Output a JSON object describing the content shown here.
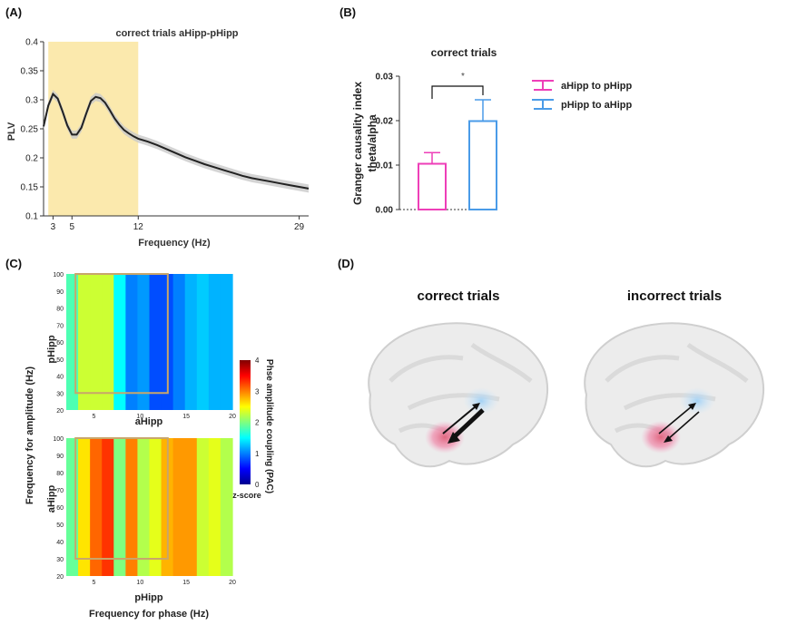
{
  "panels": {
    "A": {
      "label": "(A)",
      "chart_data": {
        "type": "line",
        "title": "correct trials aHipp-pHipp",
        "xlabel": "Frequency (Hz)",
        "ylabel": "PLV",
        "xlim": [
          2,
          30
        ],
        "ylim": [
          0.1,
          0.4
        ],
        "xticks": [
          3,
          5,
          12,
          29
        ],
        "yticks": [
          0.1,
          0.15,
          0.2,
          0.25,
          0.3,
          0.35,
          0.4
        ],
        "highlight": {
          "from": 2.5,
          "to": 12
        },
        "x": [
          2,
          2.5,
          3,
          3.5,
          4,
          4.5,
          5,
          5.5,
          6,
          6.5,
          7,
          7.5,
          8,
          8.5,
          9,
          9.5,
          10,
          10.5,
          11,
          11.5,
          12,
          13,
          14,
          15,
          16,
          17,
          18,
          19,
          20,
          21,
          22,
          23,
          24,
          25,
          26,
          27,
          28,
          29,
          30
        ],
        "y": [
          0.254,
          0.29,
          0.31,
          0.302,
          0.28,
          0.256,
          0.24,
          0.24,
          0.252,
          0.276,
          0.298,
          0.305,
          0.303,
          0.295,
          0.282,
          0.268,
          0.257,
          0.248,
          0.242,
          0.237,
          0.233,
          0.228,
          0.222,
          0.215,
          0.208,
          0.201,
          0.195,
          0.189,
          0.184,
          0.179,
          0.174,
          0.169,
          0.165,
          0.162,
          0.159,
          0.156,
          0.153,
          0.15,
          0.147
        ]
      }
    },
    "B": {
      "label": "(B)",
      "chart_data": {
        "type": "bar",
        "title": "correct trials",
        "ylabel_line1": "Granger causality index",
        "ylabel_line2": "theta/alpha",
        "ylim": [
          0,
          0.03
        ],
        "yticks": [
          "0.00",
          "0.01",
          "0.02",
          "0.03"
        ],
        "series": [
          {
            "name": "aHipp to pHipp",
            "value": 0.0103,
            "error": 0.0025,
            "color": "#ee3fb8"
          },
          {
            "name": "pHipp to aHipp",
            "value": 0.0199,
            "error": 0.0048,
            "color": "#4a9be8"
          }
        ],
        "significance": "*"
      }
    },
    "C": {
      "label": "(C)",
      "chart_data": {
        "type": "heatmap",
        "ylabel": "Frequency for amplitude (Hz)",
        "xlabel": "Frequency for phase (Hz)",
        "colorbar_label": "Phse amplitude coupling (PAC)",
        "colorbar_unit": "z-score",
        "colorbar_ticks": [
          "4",
          "3",
          "2",
          "1",
          "0"
        ],
        "clim": [
          0,
          4
        ],
        "xticks": [
          5,
          10,
          15,
          20
        ],
        "yticks": [
          20,
          30,
          40,
          50,
          60,
          70,
          80,
          90,
          100
        ],
        "maps": [
          {
            "row_label": "pHipp",
            "col_label": "aHipp",
            "column_values": [
              1.8,
              2.3,
              2.3,
              2.3,
              1.5,
              1.0,
              1.1,
              0.8,
              0.8,
              1.0,
              1.2,
              1.3,
              1.2,
              1.2
            ]
          },
          {
            "row_label": "aHipp",
            "col_label": "pHipp",
            "column_values": [
              1.9,
              2.6,
              3.1,
              3.3,
              2.0,
              3.0,
              2.2,
              2.4,
              2.8,
              2.9,
              2.9,
              2.3,
              2.4,
              2.2
            ]
          }
        ],
        "selection_box": {
          "x": [
            3,
            13
          ],
          "y": [
            30,
            100
          ]
        }
      }
    },
    "D": {
      "label": "(D)",
      "brains": [
        {
          "title": "correct trials"
        },
        {
          "title": "incorrect trials"
        }
      ]
    }
  },
  "colors": {
    "highlight": "#fbe9ad",
    "pink": "#ee3fb8",
    "blue": "#4a9be8",
    "box": "#c8a66b"
  }
}
